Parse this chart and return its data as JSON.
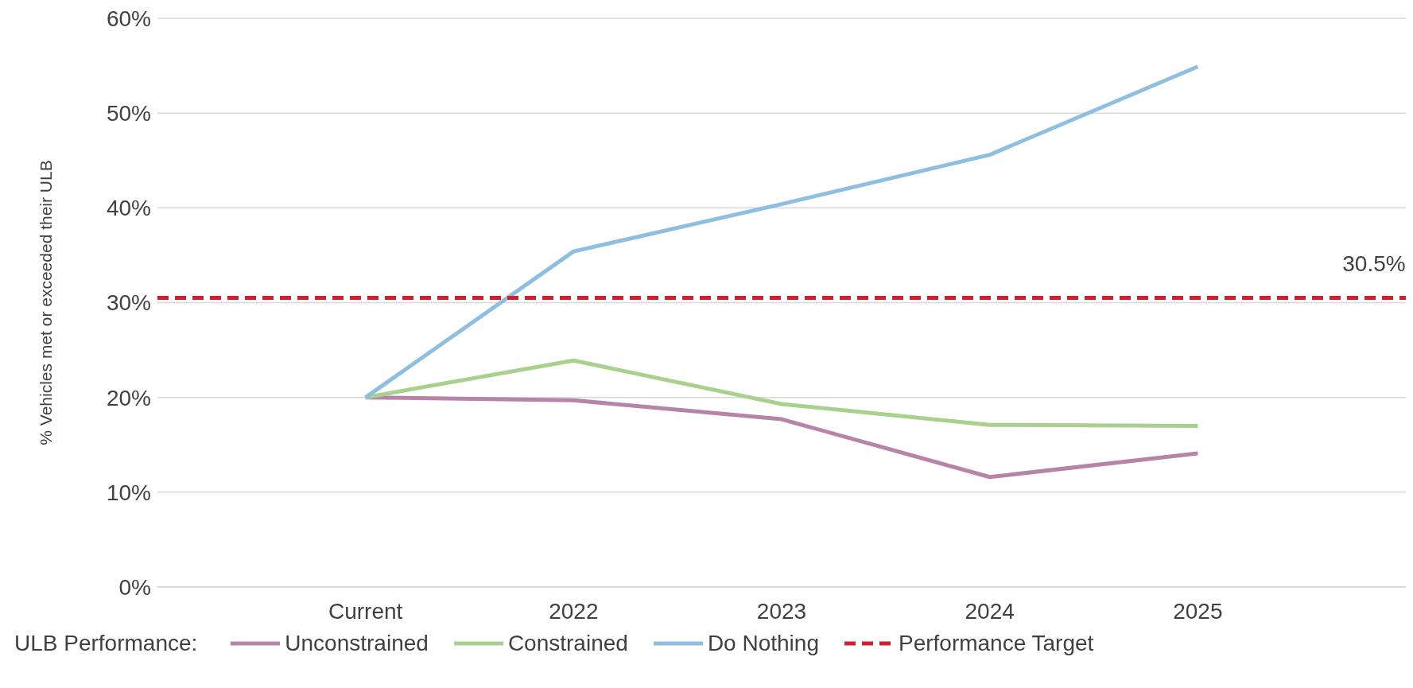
{
  "chart_data": {
    "type": "line",
    "ylabel": "% Vehicles met or exceeded their ULB",
    "legend_title": "ULB Performance:",
    "categories": [
      null,
      "Current",
      "2022",
      "2023",
      "2024",
      "2025",
      null
    ],
    "series": [
      {
        "name": "Unconstrained",
        "color": "#b784a7",
        "values": [
          null,
          20,
          19.7,
          17.7,
          11.6,
          14.1,
          null
        ]
      },
      {
        "name": "Constrained",
        "color": "#a9d18e",
        "values": [
          null,
          20,
          23.9,
          19.3,
          17.1,
          17.0,
          null
        ]
      },
      {
        "name": "Do Nothing",
        "color": "#8fbfe0",
        "values": [
          null,
          20,
          35.4,
          40.4,
          45.6,
          54.9,
          null
        ]
      },
      {
        "name": "Performance Target",
        "color": "#d0202f",
        "line_style": "dashed",
        "values": [
          30.5,
          30.5,
          30.5,
          30.5,
          30.5,
          30.5,
          30.5
        ],
        "value_labels": [
          null,
          null,
          null,
          null,
          null,
          null,
          "30.5%"
        ]
      }
    ],
    "ylim": [
      0,
      60
    ],
    "yticks": [
      {
        "value": 0,
        "label": "0%"
      },
      {
        "value": 10,
        "label": "10%"
      },
      {
        "value": 20,
        "label": "20%"
      },
      {
        "value": 30,
        "label": "30%"
      },
      {
        "value": 40,
        "label": "40%"
      },
      {
        "value": 50,
        "label": "50%"
      },
      {
        "value": 60,
        "label": "60%"
      }
    ],
    "grid": "y",
    "legend": "bottom",
    "marker": "none"
  }
}
